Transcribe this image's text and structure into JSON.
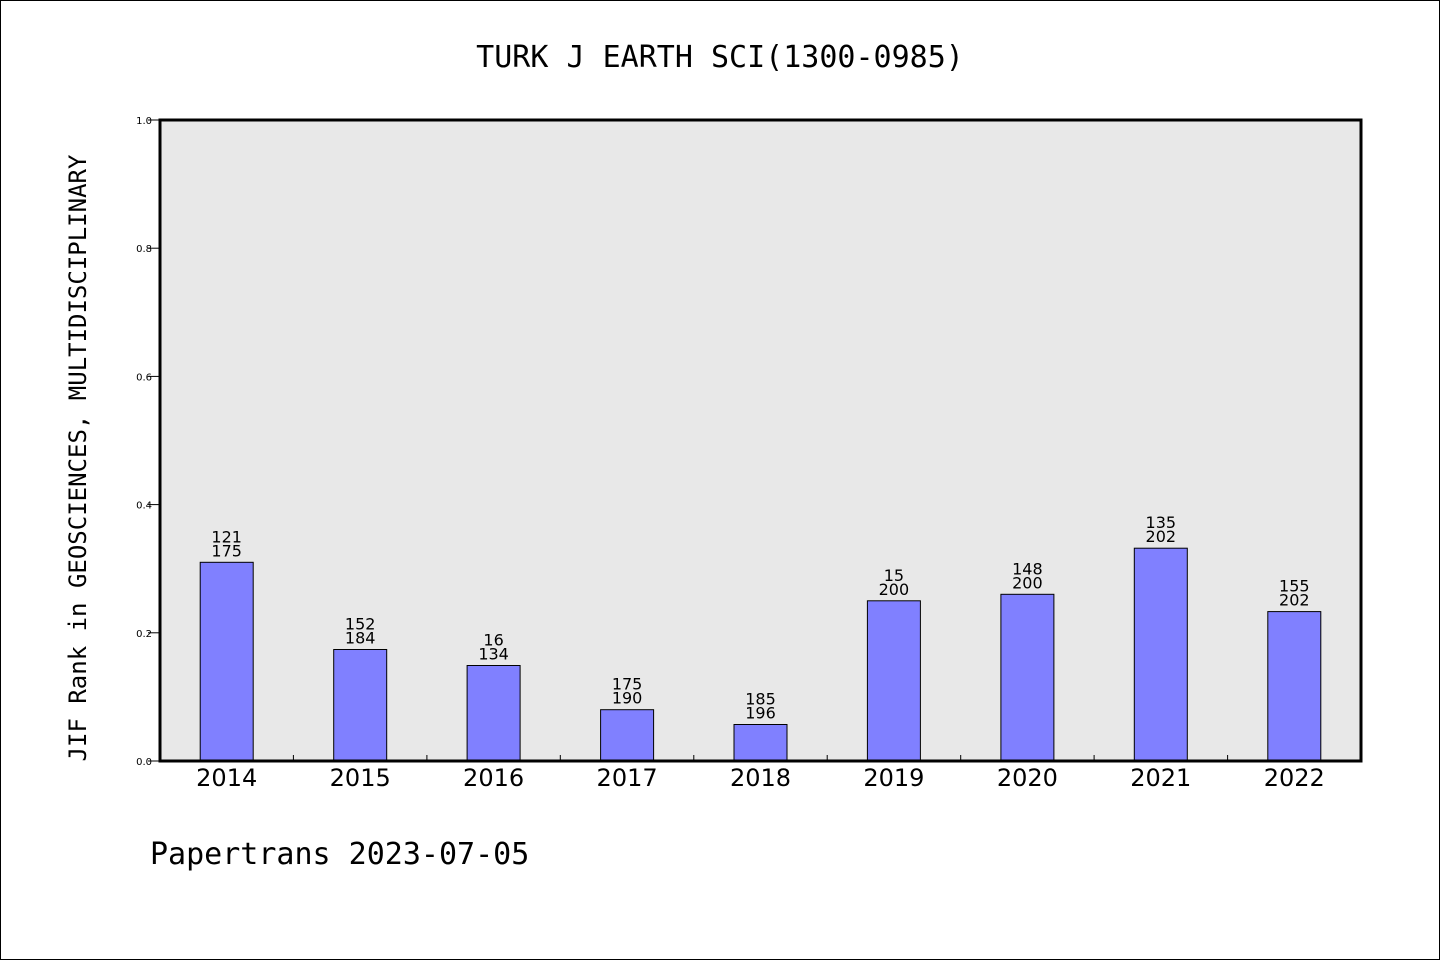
{
  "chart_data": {
    "type": "bar",
    "title": "TURK J EARTH SCI(1300-0985)",
    "xlabel": "",
    "ylabel": "JIF Rank in GEOSCIENCES, MULTIDISCIPLINARY",
    "ylim": [
      0,
      1.0
    ],
    "yticks": [
      "0.0",
      "0.2",
      "0.4",
      "0.6",
      "0.8",
      "1.0"
    ],
    "categories": [
      "2014",
      "2015",
      "2016",
      "2017",
      "2018",
      "2019",
      "2020",
      "2021",
      "2022"
    ],
    "values": [
      0.31,
      0.174,
      0.149,
      0.08,
      0.057,
      0.25,
      0.26,
      0.332,
      0.233
    ],
    "rank_labels": [
      {
        "rank": "121",
        "total": "175"
      },
      {
        "rank": "152",
        "total": "184"
      },
      {
        "rank": "16",
        "total": "134"
      },
      {
        "rank": "175",
        "total": "190"
      },
      {
        "rank": "185",
        "total": "196"
      },
      {
        "rank": "15",
        "total": "200"
      },
      {
        "rank": "148",
        "total": "200"
      },
      {
        "rank": "135",
        "total": "202"
      },
      {
        "rank": "155",
        "total": "202"
      }
    ],
    "grid": false,
    "colors": {
      "bar_fill": "#8080ff",
      "bar_stroke": "#000000",
      "plot_background": "#e8e8e8",
      "axis": "#000000"
    }
  },
  "footer": "Papertrans 2023-07-05"
}
